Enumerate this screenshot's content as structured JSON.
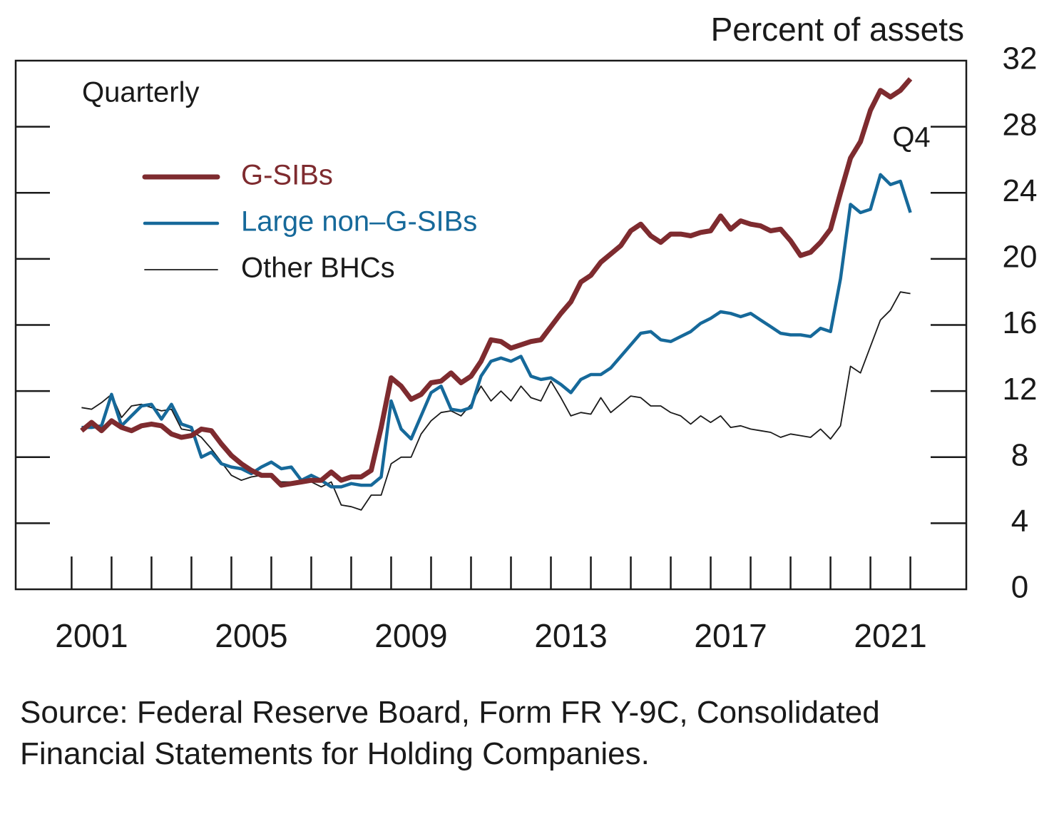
{
  "chart_data": {
    "type": "line",
    "y_axis_label": "Percent of assets",
    "frequency_label": "Quarterly",
    "annotation": "Q4",
    "source": "Source: Federal Reserve Board, Form FR Y-9C, Consolidated Financial Statements for Holding Companies.",
    "x": [
      2001.25,
      2001.5,
      2001.75,
      2002,
      2002.25,
      2002.5,
      2002.75,
      2003,
      2003.25,
      2003.5,
      2003.75,
      2004,
      2004.25,
      2004.5,
      2004.75,
      2005,
      2005.25,
      2005.5,
      2005.75,
      2006,
      2006.25,
      2006.5,
      2006.75,
      2007,
      2007.25,
      2007.5,
      2007.75,
      2008,
      2008.25,
      2008.5,
      2008.75,
      2009,
      2009.25,
      2009.5,
      2009.75,
      2010,
      2010.25,
      2010.5,
      2010.75,
      2011,
      2011.25,
      2011.5,
      2011.75,
      2012,
      2012.25,
      2012.5,
      2012.75,
      2013,
      2013.25,
      2013.5,
      2013.75,
      2014,
      2014.25,
      2014.5,
      2014.75,
      2015,
      2015.25,
      2015.5,
      2015.75,
      2016,
      2016.25,
      2016.5,
      2016.75,
      2017,
      2017.25,
      2017.5,
      2017.75,
      2018,
      2018.25,
      2018.5,
      2018.75,
      2019,
      2019.25,
      2019.5,
      2019.75,
      2020,
      2020.25,
      2020.5,
      2020.75,
      2021,
      2021.25,
      2021.5,
      2021.75,
      2022
    ],
    "series": [
      {
        "name": "G-SIBs",
        "color": "#7e2b2f",
        "width": 7,
        "values": [
          9.6,
          10.1,
          9.6,
          10.2,
          9.8,
          9.6,
          9.9,
          10.0,
          9.9,
          9.4,
          9.2,
          9.3,
          9.7,
          9.6,
          8.8,
          8.1,
          7.6,
          7.2,
          6.9,
          6.9,
          6.3,
          6.4,
          6.5,
          6.6,
          6.6,
          7.1,
          6.6,
          6.8,
          6.8,
          7.2,
          9.8,
          12.8,
          12.3,
          11.5,
          11.8,
          12.5,
          12.6,
          13.1,
          12.5,
          12.9,
          13.8,
          15.1,
          15.0,
          14.6,
          14.8,
          15.0,
          15.1,
          15.9,
          16.7,
          17.4,
          18.6,
          19.0,
          19.8,
          20.3,
          20.8,
          21.7,
          22.1,
          21.4,
          21.0,
          21.5,
          21.5,
          21.4,
          21.6,
          21.7,
          22.6,
          21.8,
          22.3,
          22.1,
          22.0,
          21.7,
          21.8,
          21.1,
          20.2,
          20.4,
          21.0,
          21.8,
          24.0,
          26.1,
          27.1,
          29.0,
          30.2,
          29.8,
          30.2,
          30.9
        ]
      },
      {
        "name": "Large non–G-SIBs",
        "color": "#16699a",
        "width": 4.5,
        "values": [
          9.8,
          9.8,
          9.9,
          11.8,
          9.9,
          10.5,
          11.1,
          11.2,
          10.3,
          11.2,
          10.0,
          9.8,
          8.0,
          8.3,
          7.6,
          7.4,
          7.3,
          7.0,
          7.4,
          7.7,
          7.3,
          7.4,
          6.6,
          6.9,
          6.6,
          6.2,
          6.2,
          6.4,
          6.3,
          6.3,
          6.8,
          11.4,
          9.7,
          9.1,
          10.5,
          11.9,
          12.3,
          10.9,
          10.8,
          11.0,
          12.9,
          13.8,
          14.0,
          13.8,
          14.1,
          12.9,
          12.7,
          12.8,
          12.4,
          11.9,
          12.7,
          13.0,
          13.0,
          13.4,
          14.1,
          14.8,
          15.5,
          15.6,
          15.1,
          15.0,
          15.3,
          15.6,
          16.1,
          16.4,
          16.8,
          16.7,
          16.5,
          16.7,
          16.3,
          15.9,
          15.5,
          15.4,
          15.4,
          15.3,
          15.8,
          15.6,
          18.8,
          23.3,
          22.8,
          23.0,
          25.1,
          24.5,
          24.7,
          22.8
        ]
      },
      {
        "name": "Other BHCs",
        "color": "#1a1a1a",
        "width": 1.8,
        "values": [
          11.0,
          10.9,
          11.3,
          11.8,
          10.4,
          11.1,
          11.2,
          11.0,
          10.8,
          10.9,
          9.7,
          9.6,
          9.2,
          8.5,
          7.7,
          6.9,
          6.6,
          6.8,
          6.9,
          6.8,
          6.5,
          6.5,
          6.4,
          6.5,
          6.2,
          6.5,
          5.1,
          5.0,
          4.8,
          5.7,
          5.7,
          7.6,
          8.0,
          8.0,
          9.4,
          10.2,
          10.7,
          10.8,
          10.5,
          11.2,
          12.3,
          11.4,
          12.0,
          11.4,
          12.3,
          11.6,
          11.4,
          12.6,
          11.6,
          10.5,
          10.7,
          10.6,
          11.6,
          10.7,
          11.2,
          11.7,
          11.6,
          11.1,
          11.1,
          10.7,
          10.5,
          10.0,
          10.5,
          10.1,
          10.5,
          9.8,
          9.9,
          9.7,
          9.6,
          9.5,
          9.2,
          9.4,
          9.3,
          9.2,
          9.7,
          9.1,
          9.9,
          13.5,
          13.1,
          14.7,
          16.3,
          16.9,
          18.0,
          17.9
        ]
      }
    ],
    "xlim": [
      1999.6,
      2023.4
    ],
    "xticks": [
      {
        "value": 2001.5,
        "label": "2001"
      },
      {
        "value": 2005.5,
        "label": "2005"
      },
      {
        "value": 2009.5,
        "label": "2009"
      },
      {
        "value": 2013.5,
        "label": "2013"
      },
      {
        "value": 2017.5,
        "label": "2017"
      },
      {
        "value": 2021.5,
        "label": "2021"
      }
    ],
    "x_minor_ticks": [
      2001,
      2002,
      2003,
      2004,
      2005,
      2006,
      2007,
      2008,
      2009,
      2010,
      2011,
      2012,
      2013,
      2014,
      2015,
      2016,
      2017,
      2018,
      2019,
      2020,
      2021,
      2022
    ],
    "ylim": [
      0,
      32
    ],
    "yticks": [
      0,
      4,
      8,
      12,
      16,
      20,
      24,
      28,
      32
    ],
    "grid": false,
    "legend": "upper left"
  }
}
